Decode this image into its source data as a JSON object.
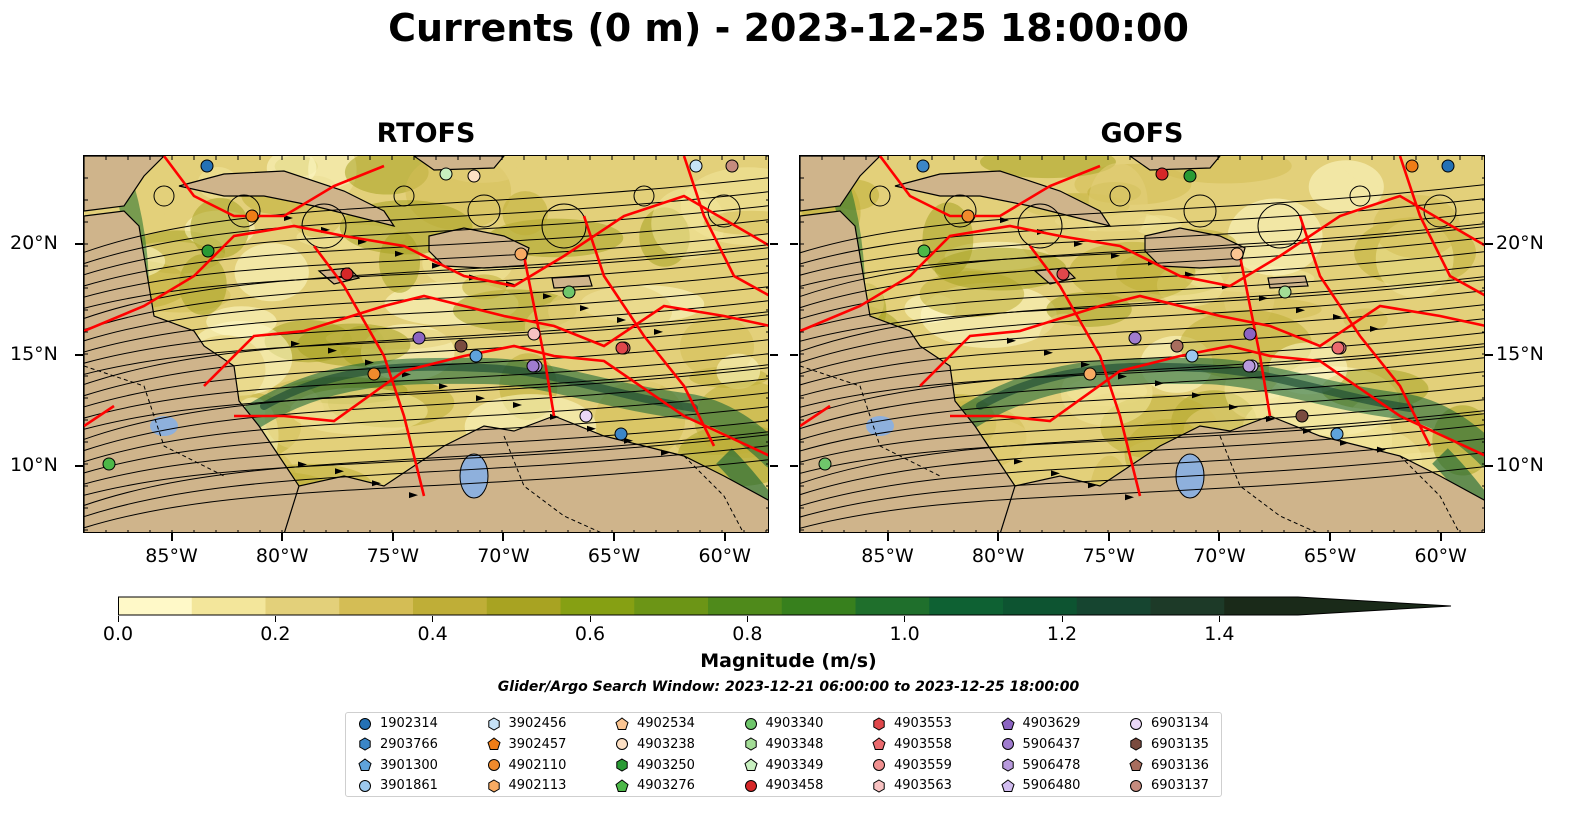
{
  "figure": {
    "title": "Currents (0 m) - 2023-12-25 18:00:00",
    "search_window": "Glider/Argo Search Window: 2023-12-21 06:00:00 to 2023-12-25 18:00:00"
  },
  "chart_data": [
    {
      "type": "heatmap",
      "title": "RTOFS",
      "variable": "surface current magnitude with streamlines",
      "x_ticks": [
        "85°W",
        "80°W",
        "75°W",
        "70°W",
        "65°W",
        "60°W"
      ],
      "y_ticks": [
        "20°N",
        "15°N",
        "10°N"
      ],
      "xlim": [
        -89,
        -58
      ],
      "ylim": [
        7,
        24
      ]
    },
    {
      "type": "heatmap",
      "title": "GOFS",
      "variable": "surface current magnitude with streamlines",
      "x_ticks": [
        "85°W",
        "80°W",
        "75°W",
        "70°W",
        "65°W",
        "60°W"
      ],
      "y_ticks": [
        "20°N",
        "15°N",
        "10°N"
      ],
      "xlim": [
        -89,
        -58
      ],
      "ylim": [
        7,
        24
      ]
    }
  ],
  "colorbar": {
    "label": "Magnitude (m/s)",
    "ticks": [
      "0.0",
      "0.2",
      "0.4",
      "0.6",
      "0.8",
      "1.0",
      "1.2",
      "1.4"
    ],
    "min": 0,
    "max": 1.5,
    "extend": "max",
    "colors": [
      "#fff9c8",
      "#f3e69b",
      "#e3d07a",
      "#d4bd55",
      "#bfae37",
      "#a8a322",
      "#86a013",
      "#6c9516",
      "#4f8a1b",
      "#37801d",
      "#1f6f2c",
      "#0e6133",
      "#0d5431",
      "#164530",
      "#1d3a28",
      "#1a2a19"
    ]
  },
  "map_colors": {
    "land": "#cfb48b",
    "lake": "#8eb0dc",
    "eez": "#ff0000",
    "streamline": "#000000"
  },
  "legend": {
    "items": [
      {
        "label": "1902314",
        "color": "#2471b5",
        "marker": "circle"
      },
      {
        "label": "2903766",
        "color": "#3b86c7",
        "marker": "hexagon"
      },
      {
        "label": "3901300",
        "color": "#5fa3db",
        "marker": "pentagon"
      },
      {
        "label": "3901861",
        "color": "#9cc8ee",
        "marker": "circle"
      },
      {
        "label": "3902456",
        "color": "#c6e2f7",
        "marker": "hexagon"
      },
      {
        "label": "3902457",
        "color": "#ef7d16",
        "marker": "pentagon"
      },
      {
        "label": "4902110",
        "color": "#f08a2c",
        "marker": "circle"
      },
      {
        "label": "4902113",
        "color": "#f7ab63",
        "marker": "hexagon"
      },
      {
        "label": "4902534",
        "color": "#fbc592",
        "marker": "pentagon"
      },
      {
        "label": "4903238",
        "color": "#fde0c4",
        "marker": "circle"
      },
      {
        "label": "4903250",
        "color": "#2a9a34",
        "marker": "hexagon"
      },
      {
        "label": "4903276",
        "color": "#4cb848",
        "marker": "pentagon"
      },
      {
        "label": "4903340",
        "color": "#6fc66b",
        "marker": "circle"
      },
      {
        "label": "4903348",
        "color": "#a3dd96",
        "marker": "hexagon"
      },
      {
        "label": "4903349",
        "color": "#c8f0c0",
        "marker": "pentagon"
      },
      {
        "label": "4903458",
        "color": "#d62728",
        "marker": "circle"
      },
      {
        "label": "4903553",
        "color": "#e0474b",
        "marker": "hexagon"
      },
      {
        "label": "4903558",
        "color": "#ea6a6e",
        "marker": "pentagon"
      },
      {
        "label": "4903559",
        "color": "#f09090",
        "marker": "circle"
      },
      {
        "label": "4903563",
        "color": "#f8c2c2",
        "marker": "hexagon"
      },
      {
        "label": "4903629",
        "color": "#8c64c2",
        "marker": "pentagon"
      },
      {
        "label": "5906437",
        "color": "#a07ccf",
        "marker": "circle"
      },
      {
        "label": "5906478",
        "color": "#b89add",
        "marker": "hexagon"
      },
      {
        "label": "5906480",
        "color": "#d2bdf0",
        "marker": "pentagon"
      },
      {
        "label": "6903134",
        "color": "#ead7f6",
        "marker": "circle"
      },
      {
        "label": "6903135",
        "color": "#7a4b3f",
        "marker": "hexagon"
      },
      {
        "label": "6903136",
        "color": "#a86d5e",
        "marker": "pentagon"
      },
      {
        "label": "6903137",
        "color": "#c58b7e",
        "marker": "circle"
      }
    ]
  }
}
